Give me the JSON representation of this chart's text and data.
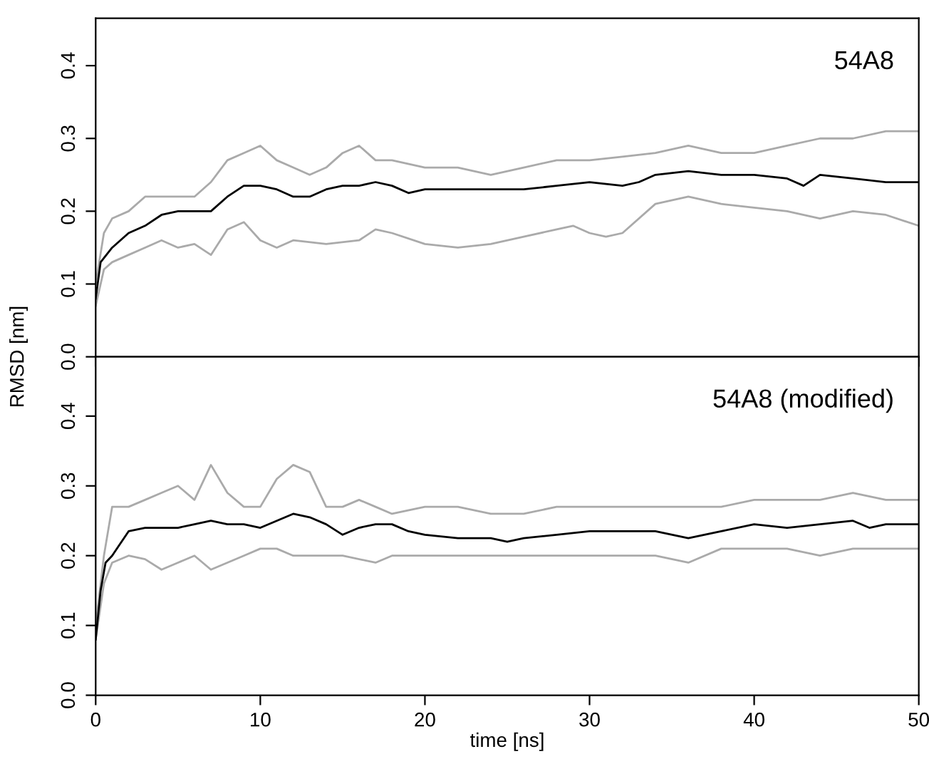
{
  "chart_data": [
    {
      "type": "line",
      "ylabel": "RMSD [nm]",
      "annotations": [
        "54A8"
      ],
      "xlim": [
        0,
        50
      ],
      "ylim": [
        0,
        0.465
      ],
      "xticks": [
        0,
        10,
        20,
        30,
        40,
        50
      ],
      "yticks": [
        {
          "value": 0,
          "label": "0.0"
        },
        0.1,
        0.2,
        0.3,
        0.4
      ],
      "tick_labels": "y",
      "marker": "none",
      "line_style": "solid",
      "series": [
        {
          "color": "#aaaaaa",
          "x": [
            0,
            0.5,
            1,
            2,
            3,
            4,
            5,
            6,
            7,
            8,
            9,
            10,
            11,
            12,
            13,
            14,
            15,
            16,
            17,
            18,
            20,
            22,
            24,
            26,
            28,
            30,
            32,
            34,
            36,
            38,
            40,
            42,
            44,
            46,
            48,
            50
          ],
          "values": [
            0.1,
            0.17,
            0.19,
            0.2,
            0.22,
            0.22,
            0.22,
            0.22,
            0.24,
            0.27,
            0.28,
            0.29,
            0.27,
            0.26,
            0.25,
            0.26,
            0.28,
            0.29,
            0.27,
            0.27,
            0.26,
            0.26,
            0.25,
            0.26,
            0.27,
            0.27,
            0.275,
            0.28,
            0.29,
            0.28,
            0.28,
            0.29,
            0.3,
            0.3,
            0.31,
            0.31
          ]
        },
        {
          "color": "#aaaaaa",
          "x": [
            0,
            0.5,
            1,
            2,
            3,
            4,
            5,
            6,
            7,
            8,
            9,
            10,
            11,
            12,
            14,
            16,
            17,
            18,
            20,
            22,
            24,
            26,
            28,
            29,
            30,
            31,
            32,
            34,
            36,
            38,
            40,
            42,
            44,
            46,
            48,
            50
          ],
          "values": [
            0.07,
            0.12,
            0.13,
            0.14,
            0.15,
            0.16,
            0.15,
            0.155,
            0.14,
            0.175,
            0.185,
            0.16,
            0.15,
            0.16,
            0.155,
            0.16,
            0.175,
            0.17,
            0.155,
            0.15,
            0.155,
            0.165,
            0.175,
            0.18,
            0.17,
            0.165,
            0.17,
            0.21,
            0.22,
            0.21,
            0.205,
            0.2,
            0.19,
            0.2,
            0.195,
            0.18
          ]
        },
        {
          "color": "#000000",
          "x": [
            0,
            0.3,
            1,
            2,
            3,
            4,
            5,
            6,
            7,
            8,
            9,
            10,
            11,
            12,
            13,
            14,
            15,
            16,
            17,
            18,
            19,
            20,
            22,
            24,
            26,
            28,
            30,
            32,
            33,
            34,
            36,
            38,
            40,
            42,
            43,
            44,
            46,
            48,
            50
          ],
          "values": [
            0.08,
            0.13,
            0.15,
            0.17,
            0.18,
            0.195,
            0.2,
            0.2,
            0.2,
            0.22,
            0.235,
            0.235,
            0.23,
            0.22,
            0.22,
            0.23,
            0.235,
            0.235,
            0.24,
            0.235,
            0.225,
            0.23,
            0.23,
            0.23,
            0.23,
            0.235,
            0.24,
            0.235,
            0.24,
            0.25,
            0.255,
            0.25,
            0.25,
            0.245,
            0.235,
            0.25,
            0.245,
            0.24,
            0.24
          ]
        }
      ]
    },
    {
      "type": "line",
      "xlabel": "time [ns]",
      "annotations": [
        "54A8 (modified)"
      ],
      "xlim": [
        0,
        50
      ],
      "ylim": [
        0,
        0.485
      ],
      "xticks": [
        0,
        10,
        20,
        30,
        40,
        50
      ],
      "yticks": [
        {
          "value": 0,
          "label": "0.0"
        },
        0.1,
        0.2,
        0.3,
        0.4
      ],
      "marker": "none",
      "line_style": "solid",
      "series": [
        {
          "color": "#aaaaaa",
          "x": [
            0,
            0.5,
            1,
            2,
            3,
            4,
            5,
            6,
            7,
            8,
            9,
            10,
            11,
            12,
            13,
            14,
            15,
            16,
            17,
            18,
            20,
            22,
            24,
            26,
            28,
            30,
            32,
            34,
            36,
            38,
            40,
            42,
            44,
            46,
            48,
            50
          ],
          "values": [
            0.1,
            0.2,
            0.27,
            0.27,
            0.28,
            0.29,
            0.3,
            0.28,
            0.33,
            0.29,
            0.27,
            0.27,
            0.31,
            0.33,
            0.32,
            0.27,
            0.27,
            0.28,
            0.27,
            0.26,
            0.27,
            0.27,
            0.26,
            0.26,
            0.27,
            0.27,
            0.27,
            0.27,
            0.27,
            0.27,
            0.28,
            0.28,
            0.28,
            0.29,
            0.28,
            0.28
          ]
        },
        {
          "color": "#aaaaaa",
          "x": [
            0,
            0.5,
            1,
            2,
            3,
            4,
            5,
            6,
            7,
            8,
            9,
            10,
            11,
            12,
            14,
            15,
            17,
            18,
            20,
            22,
            24,
            26,
            28,
            30,
            32,
            34,
            36,
            38,
            40,
            42,
            44,
            46,
            48,
            50
          ],
          "values": [
            0.08,
            0.16,
            0.19,
            0.2,
            0.195,
            0.18,
            0.19,
            0.2,
            0.18,
            0.19,
            0.2,
            0.21,
            0.21,
            0.2,
            0.2,
            0.2,
            0.19,
            0.2,
            0.2,
            0.2,
            0.2,
            0.2,
            0.2,
            0.2,
            0.2,
            0.2,
            0.19,
            0.21,
            0.21,
            0.21,
            0.2,
            0.21,
            0.21,
            0.21
          ]
        },
        {
          "color": "#000000",
          "x": [
            0,
            0.3,
            0.6,
            1,
            2,
            3,
            4,
            5,
            6,
            7,
            8,
            9,
            10,
            11,
            12,
            13,
            14,
            15,
            16,
            17,
            18,
            19,
            20,
            22,
            24,
            25,
            26,
            28,
            30,
            32,
            34,
            36,
            38,
            40,
            42,
            44,
            46,
            47,
            48,
            50
          ],
          "values": [
            0.08,
            0.15,
            0.19,
            0.2,
            0.235,
            0.24,
            0.24,
            0.24,
            0.245,
            0.25,
            0.245,
            0.245,
            0.24,
            0.25,
            0.26,
            0.255,
            0.245,
            0.23,
            0.24,
            0.245,
            0.245,
            0.235,
            0.23,
            0.225,
            0.225,
            0.22,
            0.225,
            0.23,
            0.235,
            0.235,
            0.235,
            0.225,
            0.235,
            0.245,
            0.24,
            0.245,
            0.25,
            0.24,
            0.245,
            0.245
          ]
        }
      ]
    }
  ]
}
